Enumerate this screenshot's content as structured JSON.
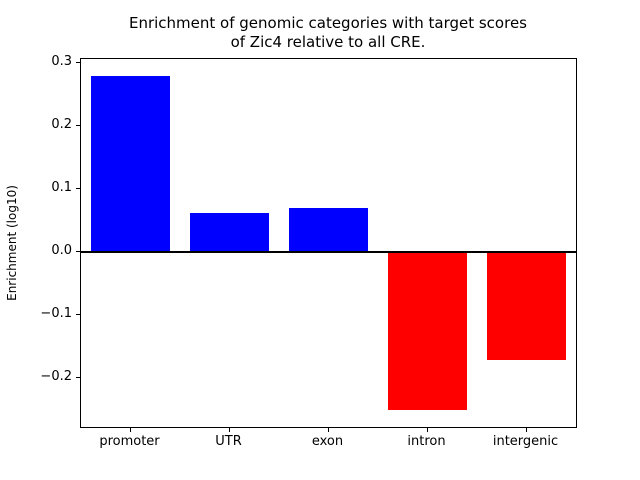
{
  "figure": {
    "ylabel": "Enrichment (log10)"
  },
  "chart_data": {
    "type": "bar",
    "title": "Enrichment of genomic categories with target scores\nof Zic4 relative to all CRE.",
    "categories": [
      "promoter",
      "UTR",
      "exon",
      "intron",
      "intergenic"
    ],
    "values": [
      0.28,
      0.062,
      0.071,
      -0.25,
      -0.17
    ],
    "positive_color": "#0000ff",
    "negative_color": "#ff0000",
    "xlabel": "",
    "ylabel": "Enrichment (log10)",
    "ylim": [
      -0.277,
      0.307
    ],
    "yticks": [
      0.3,
      0.2,
      0.1,
      0.0,
      -0.1,
      -0.2
    ],
    "ytick_labels": [
      "0.3",
      "0.2",
      "0.1",
      "0.0",
      "−0.1",
      "−0.2"
    ],
    "bar_width_fraction": 0.8,
    "grid": false,
    "legend": null,
    "zero_line": true,
    "axis_color": "#000000",
    "background_color": "#ffffff"
  }
}
